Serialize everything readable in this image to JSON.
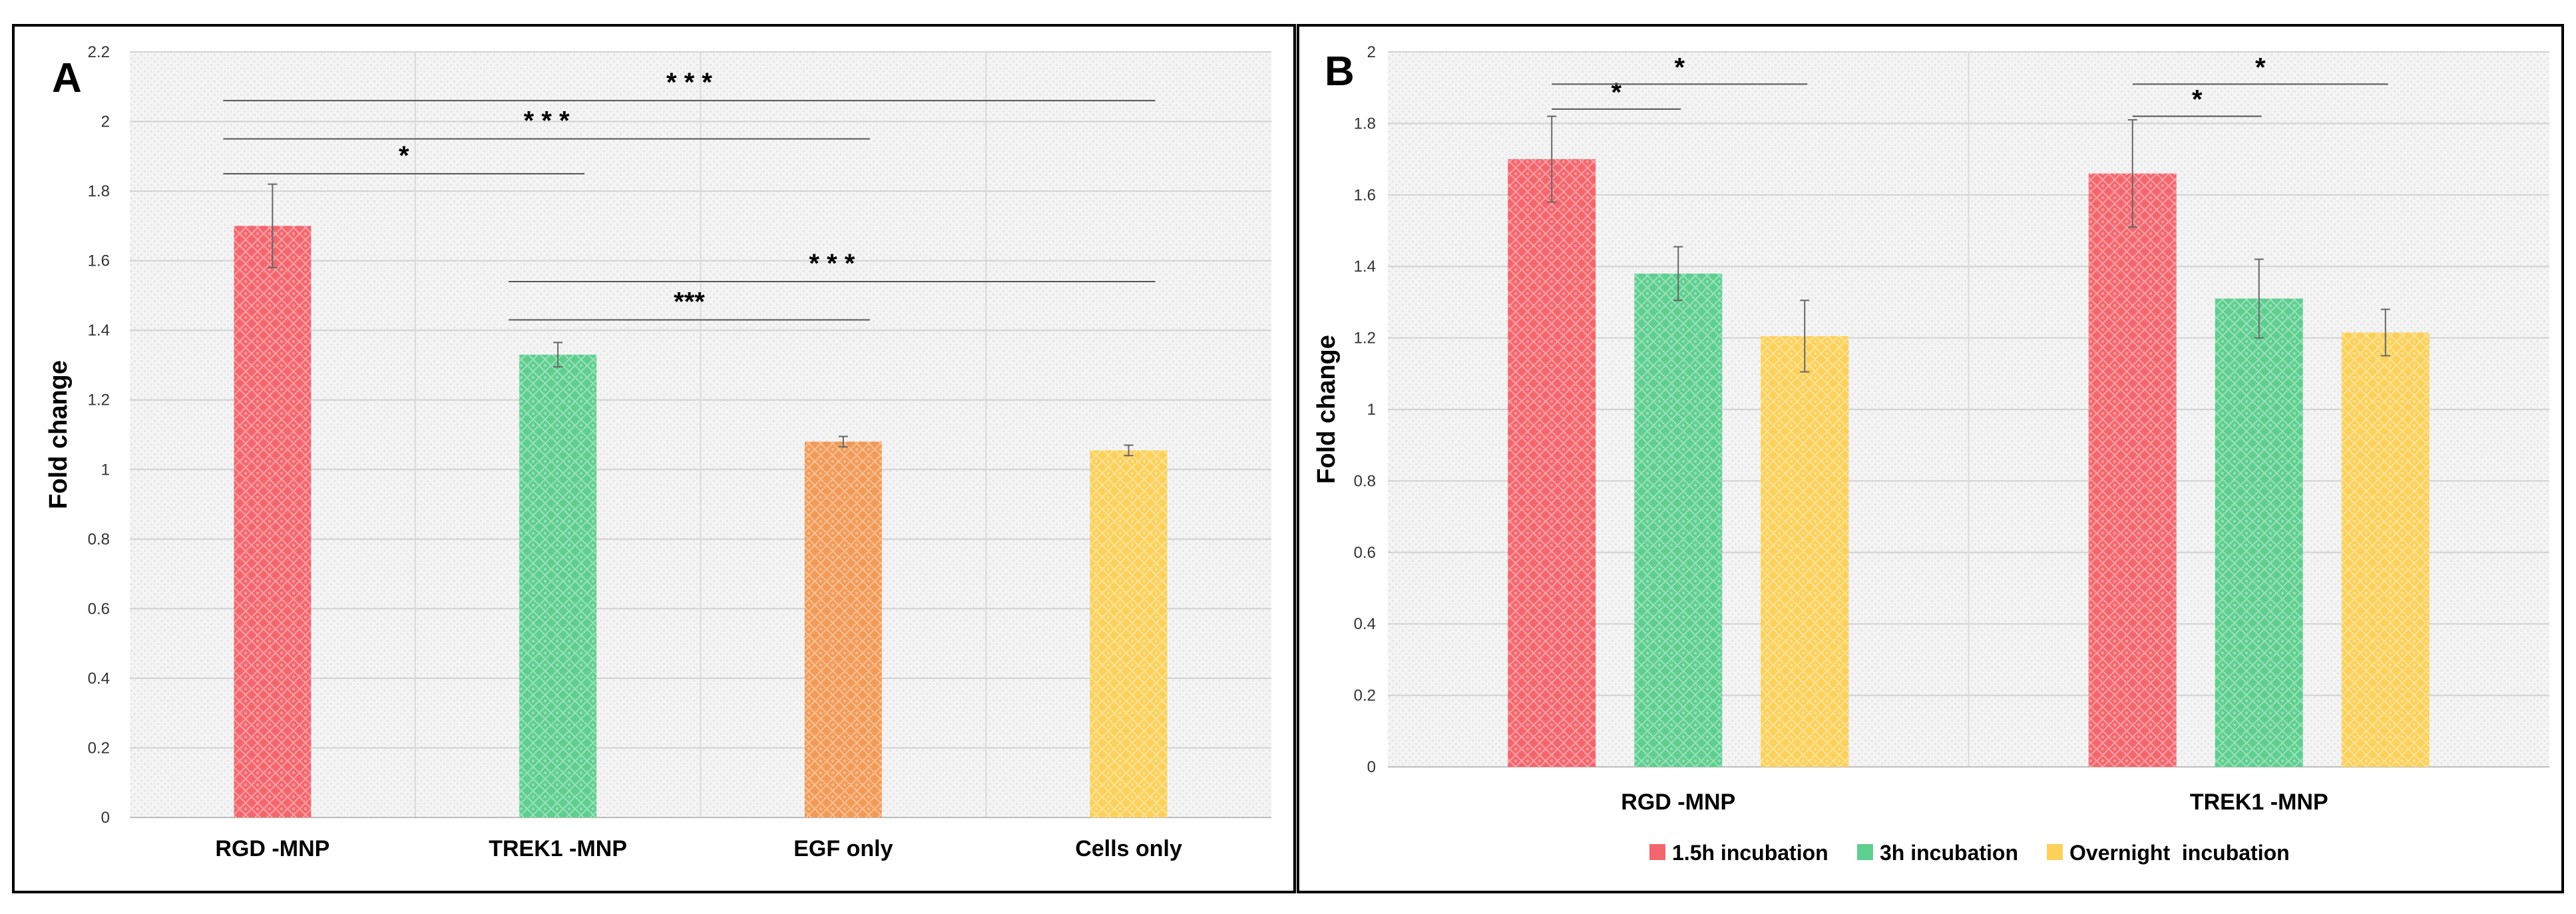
{
  "chart_data": [
    {
      "type": "bar",
      "panel_label": "A",
      "title": "",
      "xlabel": "",
      "ylabel": "Fold change",
      "ylim": [
        0,
        2.2
      ],
      "yticks": [
        "0",
        "0.2",
        "0.4",
        "0.6",
        "0.8",
        "1",
        "1.2",
        "1.4",
        "1.6",
        "1.8",
        "2",
        "2.2"
      ],
      "tick_values": [
        0,
        0.2,
        0.4,
        0.6,
        0.8,
        1,
        1.2,
        1.4,
        1.6,
        1.8,
        2,
        2.2
      ],
      "grid": true,
      "categories": [
        "RGD -MNP",
        "TREK1 -MNP",
        "EGF only",
        "Cells  only"
      ],
      "values": [
        1.7,
        1.33,
        1.08,
        1.055
      ],
      "errors": [
        0.12,
        0.035,
        0.015,
        0.015
      ],
      "colors": [
        "#f4666d",
        "#5ecf8f",
        "#f29a56",
        "#fbd15a"
      ],
      "significance": [
        {
          "from": 0,
          "to": 1,
          "level": 1.85,
          "label": "*"
        },
        {
          "from": 0,
          "to": 2,
          "level": 1.95,
          "label": "* * *"
        },
        {
          "from": 0,
          "to": 3,
          "level": 2.06,
          "label": "* * *"
        },
        {
          "from": 1,
          "to": 2,
          "level": 1.43,
          "label": "***"
        },
        {
          "from": 1,
          "to": 3,
          "level": 1.54,
          "label": "* * *"
        }
      ]
    },
    {
      "type": "bar",
      "panel_label": "B",
      "title": "",
      "xlabel": "",
      "ylabel": "Fold change",
      "ylim": [
        0,
        2
      ],
      "yticks": [
        "0",
        "0.2",
        "0.4",
        "0.6",
        "0.8",
        "1",
        "1.2",
        "1.4",
        "1.6",
        "1.8",
        "2"
      ],
      "tick_values": [
        0,
        0.2,
        0.4,
        0.6,
        0.8,
        1,
        1.2,
        1.4,
        1.6,
        1.8,
        2
      ],
      "grid": true,
      "categories": [
        "RGD -MNP",
        "TREK1 -MNP"
      ],
      "legend_position": "bottom",
      "series": [
        {
          "name": "1.5h incubation",
          "values": [
            1.7,
            1.66
          ],
          "errors": [
            0.12,
            0.15
          ],
          "color": "#f4666d"
        },
        {
          "name": "3h incubation",
          "values": [
            1.38,
            1.31
          ],
          "errors": [
            0.075,
            0.11
          ],
          "color": "#5ecf8f"
        },
        {
          "name": "Overnight  incubation",
          "values": [
            1.205,
            1.215
          ],
          "errors": [
            0.1,
            0.065
          ],
          "color": "#fbd15a"
        }
      ],
      "significance": [
        {
          "category": 0,
          "from": 0,
          "to": 1,
          "level": 1.84,
          "label": "*"
        },
        {
          "category": 0,
          "from": 0,
          "to": 2,
          "level": 1.91,
          "label": "*"
        },
        {
          "category": 1,
          "from": 0,
          "to": 1,
          "level": 1.82,
          "label": "*"
        },
        {
          "category": 1,
          "from": 0,
          "to": 2,
          "level": 1.91,
          "label": "*"
        }
      ]
    }
  ]
}
